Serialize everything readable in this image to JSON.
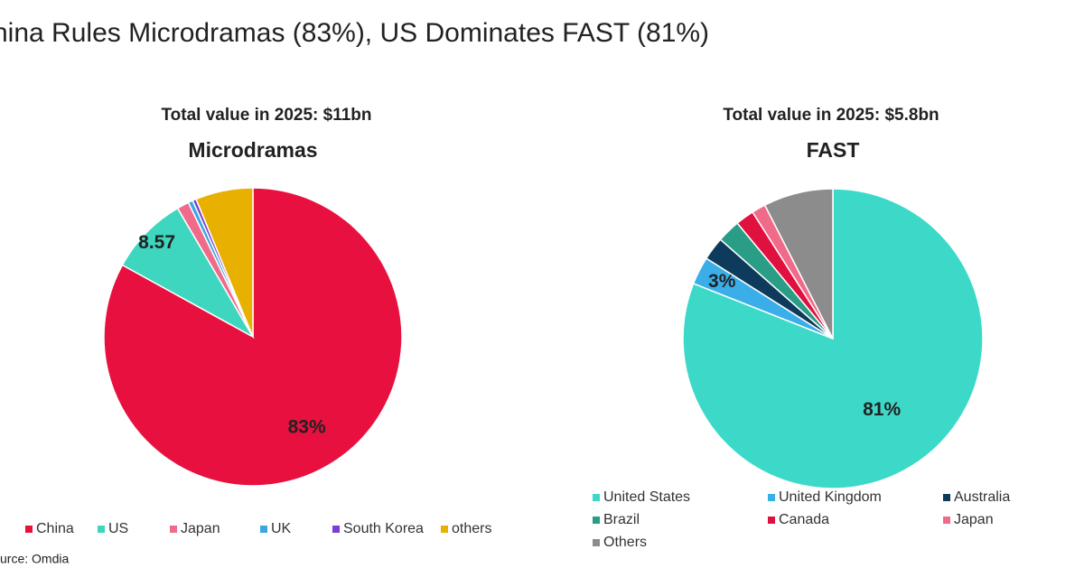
{
  "title": "hina Rules Microdramas (83%), US Dominates FAST (81%)",
  "source": "urce: Omdia",
  "chart_data": [
    {
      "type": "pie",
      "subtitle": "Total value in 2025: $11bn",
      "title": "Microdramas",
      "categories": [
        "China",
        "US",
        "Japan",
        "UK",
        "South Korea",
        "others"
      ],
      "values": [
        83,
        8.57,
        1.3,
        0.5,
        0.4,
        6.23
      ],
      "value_labels": [
        "83%",
        "8.57",
        null,
        null,
        null,
        null
      ],
      "colors": [
        "#e8103f",
        "#3fd6c0",
        "#f06b8a",
        "#3aa7e0",
        "#7b3fd6",
        "#e8b000"
      ]
    },
    {
      "type": "pie",
      "subtitle": "Total value in 2025: $5.8bn",
      "title": "FAST",
      "categories": [
        "United States",
        "United Kingdom",
        "Australia",
        "Brazil",
        "Canada",
        "Japan",
        "Others"
      ],
      "values": [
        81,
        3,
        2.5,
        2.5,
        2,
        1.5,
        7.5
      ],
      "value_labels": [
        "81%",
        "3%",
        null,
        null,
        null,
        null,
        null
      ],
      "colors": [
        "#3dd9c8",
        "#3aaee8",
        "#0e3a5c",
        "#2a9d87",
        "#e0103f",
        "#f06b8a",
        "#8c8c8c"
      ]
    }
  ]
}
